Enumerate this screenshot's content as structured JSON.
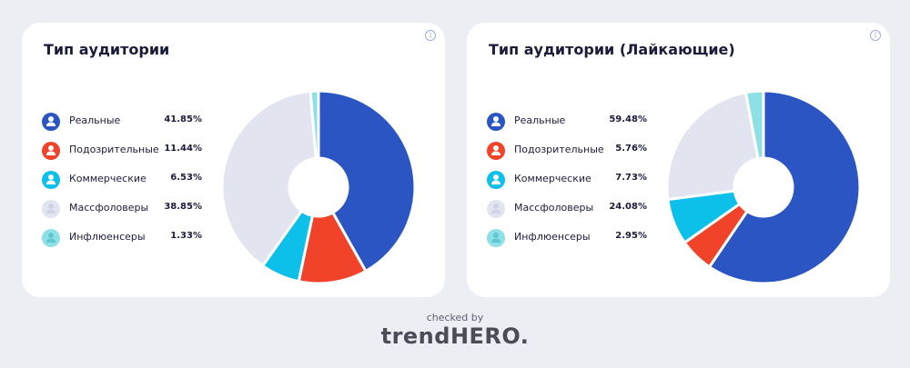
{
  "colors": {
    "real": "#2a55c2",
    "suspicious": "#f0432a",
    "commercial": "#0cc0ea",
    "massfollowers": "#e2e4f0",
    "influencers": "#8ee0e6"
  },
  "chart_data": [
    {
      "type": "pie",
      "title": "Тип аудитории",
      "categories": [
        "Реальные",
        "Подозрительные",
        "Коммерческие",
        "Массфоловеры",
        "Инфлюенсеры"
      ],
      "values": [
        41.85,
        11.44,
        6.53,
        38.85,
        1.33
      ],
      "value_labels": [
        "41.85%",
        "11.44%",
        "6.53%",
        "38.85%",
        "1.33%"
      ],
      "legend_position": "left",
      "donut": true
    },
    {
      "type": "pie",
      "title": "Тип аудитории (Лайкающие)",
      "categories": [
        "Реальные",
        "Подозрительные",
        "Коммерческие",
        "Массфоловеры",
        "Инфлюенсеры"
      ],
      "values": [
        59.48,
        5.76,
        7.73,
        24.08,
        2.95
      ],
      "value_labels": [
        "59.48%",
        "5.76%",
        "7.73%",
        "24.08%",
        "2.95%"
      ],
      "legend_position": "left",
      "donut": true
    }
  ],
  "info_icon": "info-icon",
  "footer": {
    "checked_by": "checked by",
    "brand": "trendHERO."
  }
}
